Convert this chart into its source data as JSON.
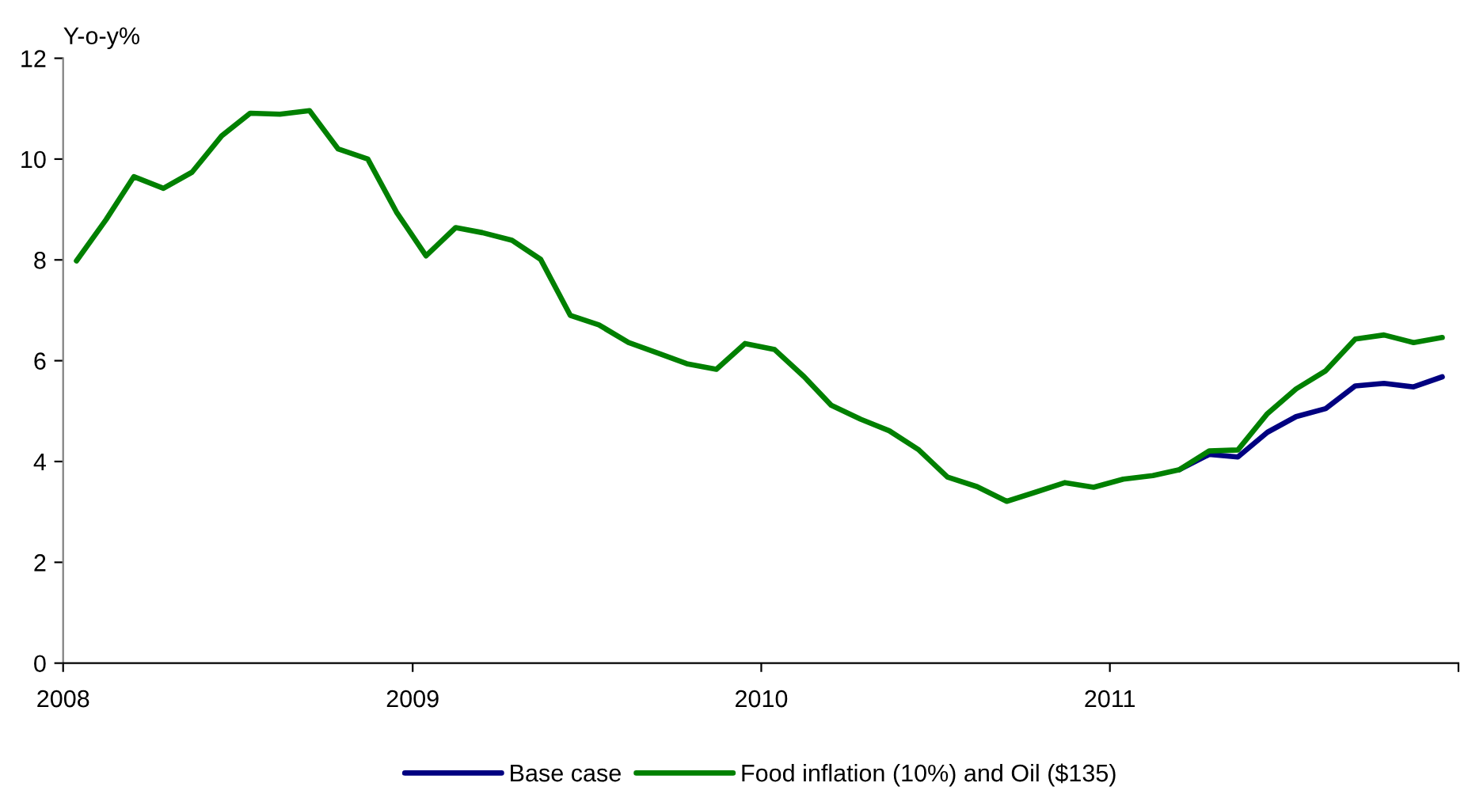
{
  "chart_data": {
    "type": "line",
    "ylabel": "Y-o-y%",
    "x": [
      "2008-01-15",
      "2008-02-15",
      "2008-03-15",
      "2008-04-15",
      "2008-05-15",
      "2008-06-15",
      "2008-07-15",
      "2008-08-15",
      "2008-09-15",
      "2008-10-15",
      "2008-11-15",
      "2008-12-15",
      "2009-01-15",
      "2009-02-15",
      "2009-03-15",
      "2009-04-15",
      "2009-05-15",
      "2009-06-15",
      "2009-07-15",
      "2009-08-15",
      "2009-09-15",
      "2009-10-15",
      "2009-11-15",
      "2009-12-15",
      "2010-01-15",
      "2010-02-15",
      "2010-03-15",
      "2010-04-15",
      "2010-05-15",
      "2010-06-15",
      "2010-07-15",
      "2010-08-15",
      "2010-09-15",
      "2010-10-15",
      "2010-11-15",
      "2010-12-15",
      "2011-01-15",
      "2011-02-15",
      "2011-03-15",
      "2011-04-15",
      "2011-05-15",
      "2011-06-15",
      "2011-07-15",
      "2011-08-15",
      "2011-09-15",
      "2011-10-15",
      "2011-11-15",
      "2011-12-15"
    ],
    "series": [
      {
        "name": "Base case",
        "color": "#000080",
        "values": [
          null,
          null,
          null,
          null,
          null,
          null,
          null,
          null,
          null,
          null,
          null,
          null,
          null,
          null,
          null,
          null,
          null,
          null,
          null,
          null,
          null,
          null,
          null,
          null,
          null,
          null,
          null,
          null,
          null,
          null,
          null,
          null,
          null,
          null,
          null,
          null,
          null,
          null,
          3.84,
          4.14,
          4.09,
          4.58,
          4.89,
          5.05,
          5.5,
          5.55,
          5.48,
          5.68
        ]
      },
      {
        "name": "Food inflation (10%) and Oil ($135)",
        "color": "#008000",
        "values": [
          7.98,
          8.8,
          9.65,
          9.42,
          9.74,
          10.46,
          10.91,
          10.89,
          10.96,
          10.2,
          10.0,
          8.95,
          8.08,
          8.64,
          8.54,
          8.39,
          8.01,
          6.9,
          6.71,
          6.36,
          6.15,
          5.94,
          5.83,
          6.34,
          6.22,
          5.68,
          5.12,
          4.84,
          4.61,
          4.23,
          3.69,
          3.5,
          3.21,
          3.39,
          3.58,
          3.49,
          3.65,
          3.72,
          3.84,
          4.21,
          4.23,
          4.95,
          5.44,
          5.8,
          6.43,
          6.51,
          6.36,
          6.46
        ]
      }
    ],
    "xlim": [
      "2008-01-01",
      "2012-01-01"
    ],
    "xticks": [
      {
        "value": "2008-01-01",
        "label": "2008"
      },
      {
        "value": "2009-01-01",
        "label": "2009"
      },
      {
        "value": "2010-01-01",
        "label": "2010"
      },
      {
        "value": "2011-01-01",
        "label": "2011"
      },
      {
        "value": "2012-01-01",
        "label": null
      }
    ],
    "ylim": [
      0,
      12
    ],
    "yticks": [
      0,
      2,
      4,
      6,
      8,
      10,
      12
    ],
    "grid": false,
    "legend": "bottom",
    "marker": "none",
    "line_style": "solid"
  }
}
